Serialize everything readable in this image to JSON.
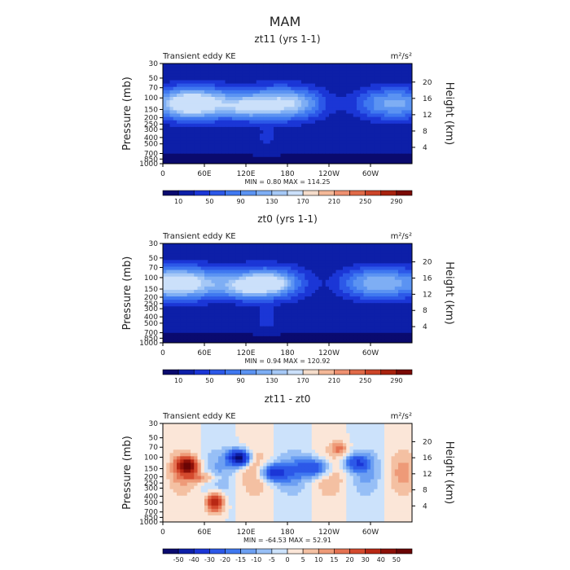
{
  "page_title": "MAM",
  "colors": {
    "absolute_scale": [
      "#0a0a6e",
      "#0d1fa8",
      "#1b36d6",
      "#2c58e8",
      "#3f78f0",
      "#5b93f2",
      "#7eaef4",
      "#a5c8f6",
      "#cbe0fa",
      "#f5dcca",
      "#f4b898",
      "#ee9070",
      "#e06a48",
      "#cc4428",
      "#a8220e",
      "#7a0a04"
    ],
    "difference_scale": [
      "#0a0a6e",
      "#0d1fa8",
      "#1b36d6",
      "#2c58e8",
      "#3f78f0",
      "#6c9ff2",
      "#97bff6",
      "#cce2fb",
      "#fbe6d8",
      "#f4c0a2",
      "#ee9a78",
      "#e47252",
      "#d44a2e",
      "#b82814",
      "#8c1008",
      "#6a0404"
    ]
  },
  "chart_data": [
    {
      "type": "heatmap",
      "title": "zt11 (yrs 1-1)",
      "subtitle_left": "Transient eddy KE",
      "units": "m²/s²",
      "ylabel": "Pressure (mb)",
      "ylabel_right": "Height (km)",
      "x_ticks": [
        "0",
        "60E",
        "120E",
        "180",
        "120W",
        "60W"
      ],
      "y_ticks": [
        "30",
        "50",
        "70",
        "100",
        "150",
        "200",
        "250",
        "300",
        "400",
        "500",
        "700",
        "850",
        "1000"
      ],
      "y_right_ticks": [
        "20",
        "16",
        "12",
        "8",
        "4"
      ],
      "stats": {
        "min_label": "MIN =",
        "min": "0.80",
        "max_label": "MAX =",
        "max": "114.25"
      },
      "colorbar_labels": [
        "10",
        "50",
        "90",
        "130",
        "170",
        "210",
        "250",
        "290"
      ],
      "color_scale": "absolute_scale",
      "field_max": 114.25
    },
    {
      "type": "heatmap",
      "title": "zt0 (yrs 1-1)",
      "subtitle_left": "Transient eddy KE",
      "units": "m²/s²",
      "ylabel": "Pressure (mb)",
      "ylabel_right": "Height (km)",
      "x_ticks": [
        "0",
        "60E",
        "120E",
        "180",
        "120W",
        "60W"
      ],
      "y_ticks": [
        "30",
        "50",
        "70",
        "100",
        "150",
        "200",
        "250",
        "300",
        "400",
        "500",
        "700",
        "850",
        "1000"
      ],
      "y_right_ticks": [
        "20",
        "16",
        "12",
        "8",
        "4"
      ],
      "stats": {
        "min_label": "MIN =",
        "min": "0.94",
        "max_label": "MAX =",
        "max": "120.92"
      },
      "colorbar_labels": [
        "10",
        "50",
        "90",
        "130",
        "170",
        "210",
        "250",
        "290"
      ],
      "color_scale": "absolute_scale",
      "field_max": 120.92
    },
    {
      "type": "heatmap",
      "title": "zt11 - zt0",
      "subtitle_left": "Transient eddy KE",
      "units": "m²/s²",
      "ylabel": "Pressure (mb)",
      "ylabel_right": "Height (km)",
      "x_ticks": [
        "0",
        "60E",
        "120E",
        "180",
        "120W",
        "60W"
      ],
      "y_ticks": [
        "30",
        "50",
        "70",
        "100",
        "150",
        "200",
        "250",
        "300",
        "400",
        "500",
        "700",
        "850",
        "1000"
      ],
      "y_right_ticks": [
        "20",
        "16",
        "12",
        "8",
        "4"
      ],
      "stats": {
        "min_label": "MIN =",
        "min": "-64.53",
        "max_label": "MAX =",
        "max": "52.91"
      },
      "colorbar_labels": [
        "-50",
        "-40",
        "-30",
        "-20",
        "-15",
        "-10",
        "-5",
        "0",
        "5",
        "10",
        "15",
        "20",
        "30",
        "40",
        "50"
      ],
      "color_scale": "difference_scale",
      "field_max": 52.91
    }
  ]
}
